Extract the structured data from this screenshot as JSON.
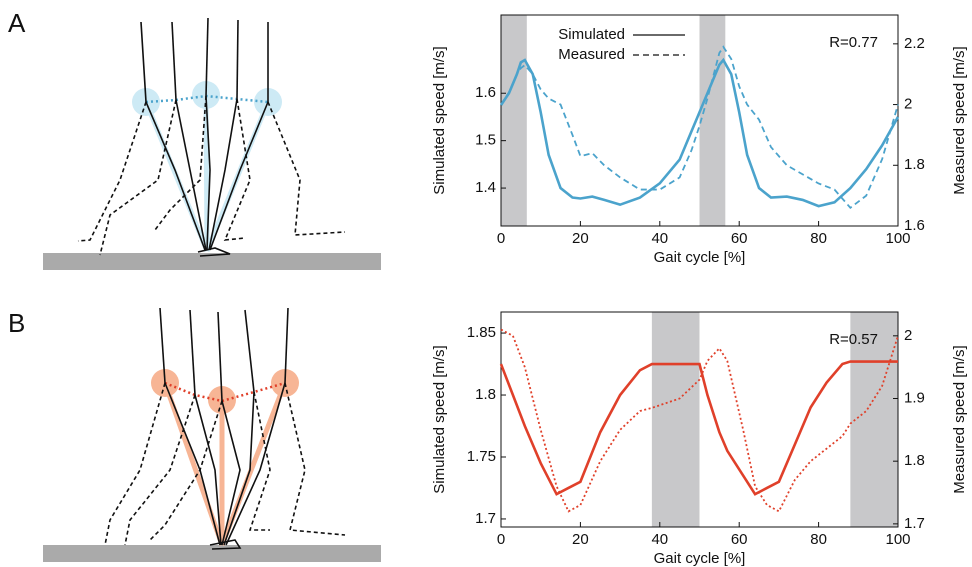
{
  "chart_data": [
    {
      "type": "line",
      "panel": "A",
      "xlabel": "Gait cycle [%]",
      "ylabel": "Simulated speed [m/s]",
      "y2label": "Measured speed [m/s]",
      "annotation": "R=0.77",
      "legend": "upper center",
      "shaded": [
        [
          0,
          6.5
        ],
        [
          50,
          56.5
        ]
      ],
      "shade_color": "#c8c8ca",
      "x": [
        0,
        2,
        4,
        5,
        6,
        8,
        10,
        12,
        15,
        18,
        20,
        23,
        26,
        30,
        35,
        40,
        45,
        48,
        50,
        52,
        54,
        55,
        56,
        58,
        60,
        62,
        65,
        68,
        72,
        76,
        80,
        84,
        88,
        92,
        96,
        100
      ],
      "series": [
        {
          "name": "Simulated",
          "color": "#4ba3cc",
          "style": "solid",
          "values": [
            1.575,
            1.6,
            1.64,
            1.665,
            1.67,
            1.64,
            1.56,
            1.47,
            1.4,
            1.38,
            1.378,
            1.382,
            1.375,
            1.365,
            1.38,
            1.41,
            1.46,
            1.52,
            1.56,
            1.6,
            1.64,
            1.66,
            1.67,
            1.64,
            1.56,
            1.47,
            1.4,
            1.38,
            1.382,
            1.375,
            1.362,
            1.37,
            1.4,
            1.44,
            1.49,
            1.55
          ]
        },
        {
          "name": "Measured",
          "color": "#4ba3cc",
          "style": "dashed",
          "axis": "y2",
          "values": [
            2.0,
            2.04,
            2.1,
            2.12,
            2.13,
            2.1,
            2.05,
            2.02,
            2.0,
            1.9,
            1.83,
            1.84,
            1.8,
            1.76,
            1.72,
            1.72,
            1.76,
            1.85,
            1.93,
            2.02,
            2.12,
            2.17,
            2.19,
            2.15,
            2.06,
            2.0,
            1.95,
            1.86,
            1.8,
            1.77,
            1.74,
            1.72,
            1.66,
            1.7,
            1.82,
            2.0
          ]
        }
      ],
      "xlim": [
        0,
        100
      ],
      "xticks": [
        0,
        20,
        40,
        60,
        80,
        100
      ],
      "ylim": [
        1.32,
        1.765
      ],
      "yticks": [
        1.4,
        1.5,
        1.6
      ],
      "y2lim": [
        1.6,
        2.295
      ],
      "y2ticks": [
        1.6,
        1.8,
        2,
        2.2
      ]
    },
    {
      "type": "line",
      "panel": "B",
      "xlabel": "Gait cycle [%]",
      "ylabel": "Simulated speed [m/s]",
      "y2label": "Measured speed [m/s]",
      "annotation": "R=0.57",
      "shaded": [
        [
          38,
          50
        ],
        [
          88,
          100
        ]
      ],
      "shade_color": "#c8c8ca",
      "x": [
        0,
        3,
        6,
        10,
        14,
        17,
        20,
        25,
        30,
        35,
        38,
        45,
        50,
        52,
        55,
        57,
        61,
        64,
        67,
        70,
        74,
        78,
        82,
        86,
        88,
        92,
        96,
        100
      ],
      "series": [
        {
          "color": "#e0402a",
          "style": "solid",
          "values": [
            1.825,
            1.8,
            1.775,
            1.745,
            1.72,
            1.725,
            1.73,
            1.77,
            1.8,
            1.82,
            1.825,
            1.825,
            1.825,
            1.8,
            1.77,
            1.755,
            1.735,
            1.72,
            1.725,
            1.73,
            1.76,
            1.79,
            1.81,
            1.825,
            1.827,
            1.827,
            1.827,
            1.827
          ]
        },
        {
          "color": "#e0402a",
          "style": "dotted",
          "axis": "y2",
          "values": [
            2.01,
            2.0,
            1.95,
            1.85,
            1.76,
            1.72,
            1.73,
            1.8,
            1.85,
            1.88,
            1.885,
            1.9,
            1.93,
            1.96,
            1.98,
            1.96,
            1.85,
            1.76,
            1.73,
            1.72,
            1.77,
            1.8,
            1.82,
            1.84,
            1.86,
            1.88,
            1.92,
            2.0
          ]
        }
      ],
      "xlim": [
        0,
        100
      ],
      "xticks": [
        0,
        20,
        40,
        60,
        80,
        100
      ],
      "ylim": [
        1.6935,
        1.867
      ],
      "yticks": [
        1.7,
        1.75,
        1.8,
        1.85
      ],
      "y2lim": [
        1.695,
        2.038
      ],
      "y2ticks": [
        1.7,
        1.8,
        1.9,
        2
      ]
    }
  ]
}
